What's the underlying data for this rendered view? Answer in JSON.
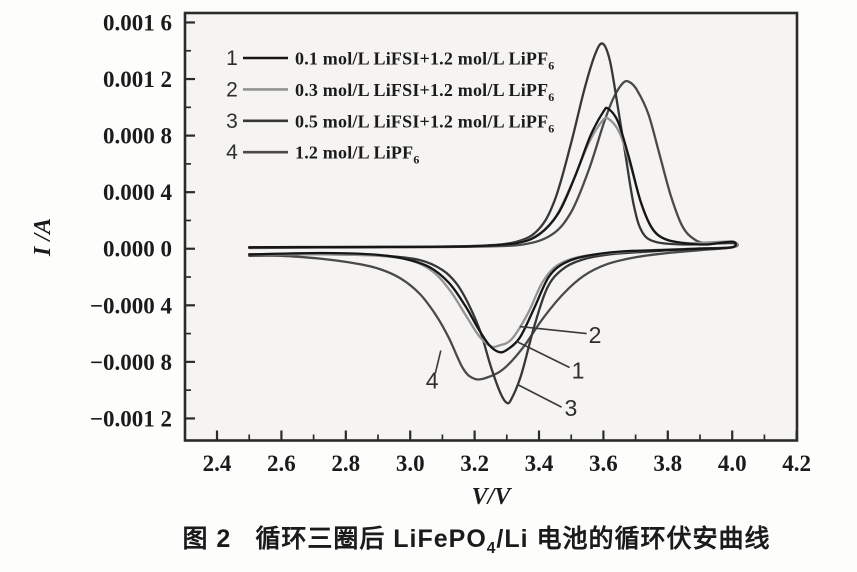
{
  "figure": {
    "caption_prefix": "图 2",
    "caption_body_1": "循环三圈后 LiFePO",
    "caption_sub": "4",
    "caption_body_2": "/Li 电池的循环伏安曲线"
  },
  "colors": {
    "page_bg": "#fdfdfc",
    "plot_bg": "#f5f4f2",
    "frame": "#2b2b2b",
    "tick": "#2b2b2b",
    "text": "#1b1b1b",
    "annotation_text": "#2e2e2e",
    "leader_line": "#3a3a3a"
  },
  "chart_data": {
    "type": "line",
    "title": "",
    "xlabel": "V/V",
    "ylabel": "I /A",
    "grid": false,
    "legend_position": "upper-left-inside",
    "xlim": [
      2.3006,
      4.2012
    ],
    "ylim": [
      -0.001356,
      0.001667
    ],
    "x_ticks_major": [
      2.4,
      2.6,
      2.8,
      3.0,
      3.2,
      3.4,
      3.6,
      3.8,
      4.0,
      4.2
    ],
    "x_tick_labels": [
      "2.4",
      "2.6",
      "2.8",
      "3.0",
      "3.2",
      "3.4",
      "3.6",
      "3.8",
      "4.0",
      "4.2"
    ],
    "x_ticks_minor": [
      2.5,
      2.7,
      2.9,
      3.1,
      3.3,
      3.5,
      3.7,
      3.9,
      4.1
    ],
    "y_ticks_major": [
      0.0016,
      0.0012,
      0.0008,
      0.0004,
      0.0,
      -0.0004,
      -0.0008,
      -0.0012
    ],
    "y_tick_labels": [
      "0.001 6",
      "0.001 2",
      "0.000 8",
      "0.000 4",
      "0.000 0",
      "−0.000 4",
      "−0.000 8",
      "−0.001 2"
    ],
    "y_ticks_minor": [
      0.0014,
      0.001,
      0.0006,
      0.0002,
      -0.0002,
      -0.0006,
      -0.001
    ],
    "series": [
      {
        "num": "1",
        "label": "0.1 mol/L LiFSI+1.2 mol/L LiPF",
        "label_sub": "6",
        "color": "#161616",
        "anodic_peak": {
          "v": 3.61,
          "i": 0.00099
        },
        "cathodic_peak": {
          "v": 3.28,
          "i": -0.00073
        },
        "points": [
          [
            2.5,
            1e-05
          ],
          [
            2.7,
            1.2e-05
          ],
          [
            2.95,
            1.3e-05
          ],
          [
            3.2,
            1.8e-05
          ],
          [
            3.33,
            4e-05
          ],
          [
            3.4,
            0.0001
          ],
          [
            3.46,
            0.00025
          ],
          [
            3.51,
            0.0005
          ],
          [
            3.56,
            0.0008
          ],
          [
            3.6,
            0.00097
          ],
          [
            3.615,
            0.00099
          ],
          [
            3.645,
            0.0009
          ],
          [
            3.68,
            0.00064
          ],
          [
            3.715,
            0.00034
          ],
          [
            3.75,
            0.00015
          ],
          [
            3.79,
            7e-05
          ],
          [
            3.85,
            4e-05
          ],
          [
            3.92,
            3e-05
          ],
          [
            4.0,
            5e-05
          ],
          [
            4.0,
            1e-05
          ],
          [
            3.9,
            0.0
          ],
          [
            3.78,
            -1e-05
          ],
          [
            3.65,
            -2e-05
          ],
          [
            3.55,
            -5e-05
          ],
          [
            3.48,
            -0.0001
          ],
          [
            3.43,
            -0.0002
          ],
          [
            3.385,
            -0.00042
          ],
          [
            3.34,
            -0.00063
          ],
          [
            3.3,
            -0.000715
          ],
          [
            3.275,
            -0.00073
          ],
          [
            3.245,
            -0.00068
          ],
          [
            3.21,
            -0.00056
          ],
          [
            3.17,
            -0.0004
          ],
          [
            3.12,
            -0.00024
          ],
          [
            3.06,
            -0.00013
          ],
          [
            2.98,
            -7e-05
          ],
          [
            2.88,
            -4e-05
          ],
          [
            2.72,
            -3e-05
          ],
          [
            2.5,
            -4e-05
          ]
        ]
      },
      {
        "num": "2",
        "label": "0.3 mol/L LiFSI+1.2 mol/L LiPF",
        "label_sub": "6",
        "color": "#939393",
        "anodic_peak": {
          "v": 3.615,
          "i": 0.00092
        },
        "cathodic_peak": {
          "v": 3.25,
          "i": -0.00069
        },
        "points": [
          [
            2.5,
            1e-05
          ],
          [
            2.8,
            1.2e-05
          ],
          [
            3.1,
            1.5e-05
          ],
          [
            3.3,
            3e-05
          ],
          [
            3.39,
            9e-05
          ],
          [
            3.45,
            0.00022
          ],
          [
            3.5,
            0.00045
          ],
          [
            3.555,
            0.00075
          ],
          [
            3.595,
            0.0009
          ],
          [
            3.615,
            0.00092
          ],
          [
            3.65,
            0.00082
          ],
          [
            3.685,
            0.00058
          ],
          [
            3.72,
            0.0003
          ],
          [
            3.755,
            0.00013
          ],
          [
            3.8,
            6e-05
          ],
          [
            3.87,
            4e-05
          ],
          [
            4.0,
            5e-05
          ],
          [
            4.0,
            1e-05
          ],
          [
            3.88,
            0.0
          ],
          [
            3.75,
            -1e-05
          ],
          [
            3.62,
            -3e-05
          ],
          [
            3.52,
            -6e-05
          ],
          [
            3.455,
            -0.00012
          ],
          [
            3.41,
            -0.00024
          ],
          [
            3.365,
            -0.00046
          ],
          [
            3.315,
            -0.00064
          ],
          [
            3.275,
            -0.000685
          ],
          [
            3.25,
            -0.00069
          ],
          [
            3.215,
            -0.00062
          ],
          [
            3.175,
            -0.00048
          ],
          [
            3.125,
            -0.0003
          ],
          [
            3.07,
            -0.00016
          ],
          [
            3.0,
            -8e-05
          ],
          [
            2.9,
            -5e-05
          ],
          [
            2.72,
            -4e-05
          ],
          [
            2.5,
            -4e-05
          ]
        ]
      },
      {
        "num": "3",
        "label": "0.5 mol/L LiFSI+1.2 mol/L LiPF",
        "label_sub": "6",
        "color": "#373737",
        "anodic_peak": {
          "v": 3.6,
          "i": 0.00145
        },
        "cathodic_peak": {
          "v": 3.3,
          "i": -0.00109
        },
        "points": [
          [
            2.5,
            1e-05
          ],
          [
            2.9,
            1.3e-05
          ],
          [
            3.2,
            2e-05
          ],
          [
            3.33,
            5e-05
          ],
          [
            3.4,
            0.00014
          ],
          [
            3.45,
            0.00035
          ],
          [
            3.5,
            0.00075
          ],
          [
            3.54,
            0.00112
          ],
          [
            3.575,
            0.00138
          ],
          [
            3.598,
            0.00145
          ],
          [
            3.62,
            0.00133
          ],
          [
            3.645,
            0.001
          ],
          [
            3.67,
            0.00064
          ],
          [
            3.695,
            0.0003
          ],
          [
            3.72,
            0.00012
          ],
          [
            3.76,
            5e-05
          ],
          [
            3.85,
            3e-05
          ],
          [
            4.0,
            4e-05
          ],
          [
            4.0,
            1e-05
          ],
          [
            3.88,
            0.0
          ],
          [
            3.74,
            -2e-05
          ],
          [
            3.62,
            -4e-05
          ],
          [
            3.53,
            -8e-05
          ],
          [
            3.47,
            -0.00015
          ],
          [
            3.425,
            -0.00028
          ],
          [
            3.385,
            -0.00055
          ],
          [
            3.345,
            -0.00089
          ],
          [
            3.315,
            -0.00106
          ],
          [
            3.3,
            -0.00109
          ],
          [
            3.28,
            -0.00102
          ],
          [
            3.25,
            -0.00083
          ],
          [
            3.22,
            -0.0006
          ],
          [
            3.185,
            -0.00041
          ],
          [
            3.145,
            -0.00025
          ],
          [
            3.1,
            -0.00015
          ],
          [
            3.03,
            -8e-05
          ],
          [
            2.92,
            -5e-05
          ],
          [
            2.75,
            -4e-05
          ],
          [
            2.5,
            -4e-05
          ]
        ]
      },
      {
        "num": "4",
        "label": "1.2 mol/L LiPF",
        "label_sub": "6",
        "color": "#4a4a4a",
        "anodic_peak": {
          "v": 3.67,
          "i": 0.00118
        },
        "cathodic_peak": {
          "v": 3.2,
          "i": -0.00092
        },
        "points": [
          [
            2.5,
            5e-06
          ],
          [
            2.9,
            1e-05
          ],
          [
            3.2,
            1.5e-05
          ],
          [
            3.35,
            3e-05
          ],
          [
            3.44,
            0.0001
          ],
          [
            3.5,
            0.00026
          ],
          [
            3.555,
            0.00056
          ],
          [
            3.6,
            0.00088
          ],
          [
            3.63,
            0.00106
          ],
          [
            3.66,
            0.00117
          ],
          [
            3.68,
            0.00118
          ],
          [
            3.705,
            0.00112
          ],
          [
            3.74,
            0.00095
          ],
          [
            3.775,
            0.00066
          ],
          [
            3.81,
            0.00037
          ],
          [
            3.845,
            0.00016
          ],
          [
            3.88,
            7e-05
          ],
          [
            3.92,
            4e-05
          ],
          [
            4.0,
            5e-05
          ],
          [
            4.0,
            1e-05
          ],
          [
            3.9,
            -1e-05
          ],
          [
            3.8,
            -3e-05
          ],
          [
            3.7,
            -6e-05
          ],
          [
            3.61,
            -0.00011
          ],
          [
            3.54,
            -0.00019
          ],
          [
            3.475,
            -0.00032
          ],
          [
            3.41,
            -0.0005
          ],
          [
            3.35,
            -0.0007
          ],
          [
            3.29,
            -0.00085
          ],
          [
            3.24,
            -0.00091
          ],
          [
            3.2,
            -0.00092
          ],
          [
            3.165,
            -0.00085
          ],
          [
            3.12,
            -0.00063
          ],
          [
            3.08,
            -0.00047
          ],
          [
            3.03,
            -0.00032
          ],
          [
            2.97,
            -0.00021
          ],
          [
            2.9,
            -0.00014
          ],
          [
            2.82,
            -0.0001
          ],
          [
            2.72,
            -7e-05
          ],
          [
            2.6,
            -5e-05
          ],
          [
            2.5,
            -5e-05
          ]
        ]
      }
    ],
    "annotations": [
      {
        "text": "1",
        "label_v": 3.521,
        "label_i": -0.00086,
        "line": [
          3.33,
          -0.000655,
          3.495,
          -0.00084
        ]
      },
      {
        "text": "2",
        "label_v": 3.574,
        "label_i": -0.00061,
        "line": [
          3.34,
          -0.00055,
          3.548,
          -0.0006
        ]
      },
      {
        "text": "3",
        "label_v": 3.499,
        "label_i": -0.001125,
        "line": [
          3.333,
          -0.00096,
          3.47,
          -0.00112
        ]
      },
      {
        "text": "4",
        "label_v": 3.068,
        "label_i": -0.00093,
        "line": [
          3.095,
          -0.00072,
          3.078,
          -0.00088
        ]
      }
    ]
  }
}
